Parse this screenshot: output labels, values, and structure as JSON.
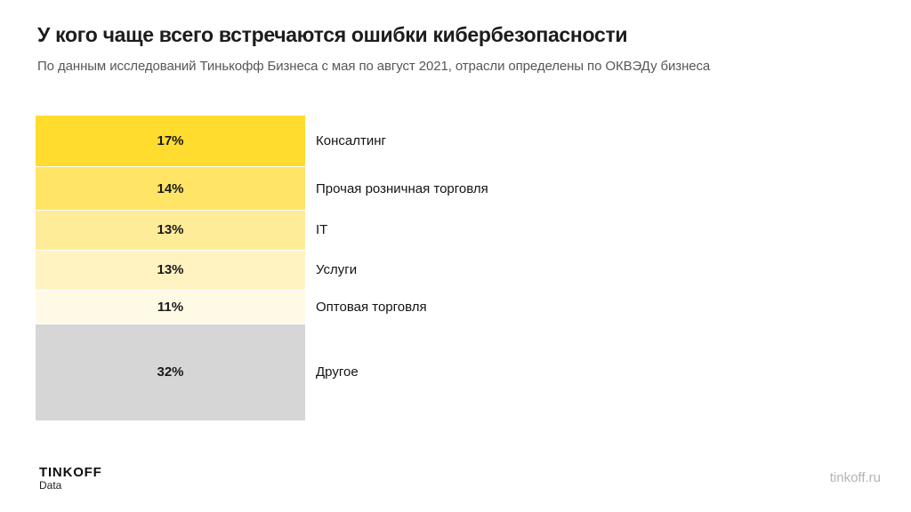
{
  "page": {
    "title": "У кого чаще всего встречаются ошибки кибербезопасности",
    "subtitle": "По данным исследований Тинькофф Бизнеса с мая по август 2021, отрасли определены по ОКВЭДу бизнеса"
  },
  "footer": {
    "brand": "TINKOFF",
    "brand_sub": "Data",
    "site": "tinkoff.ru"
  },
  "colors": {
    "accent_yellow": "#FFDC2D",
    "other_gray": "#D6D6D6",
    "title_text": "#1C1C1E",
    "subtitle_text": "#56575B",
    "site_text": "#B4B4B6"
  },
  "chart_data": {
    "type": "bar",
    "orientation": "horizontal-rows-proportional-height",
    "title": "У кого чаще всего встречаются ошибки кибербезопасности",
    "unit": "%",
    "categories": [
      "Консалтинг",
      "Прочая розничная торговля",
      "IT",
      "Услуги",
      "Оптовая торговля",
      "Другое"
    ],
    "values": [
      17,
      14,
      13,
      13,
      11,
      32
    ],
    "value_labels": [
      "17%",
      "14%",
      "13%",
      "13%",
      "11%",
      "32%"
    ],
    "bar_colors": [
      "#FFDC2D",
      "#FFE466",
      "#FFEC99",
      "#FFF3C2",
      "#FFFAE6",
      "#D6D6D6"
    ],
    "total": 100,
    "legend": "none",
    "grid": "off"
  }
}
